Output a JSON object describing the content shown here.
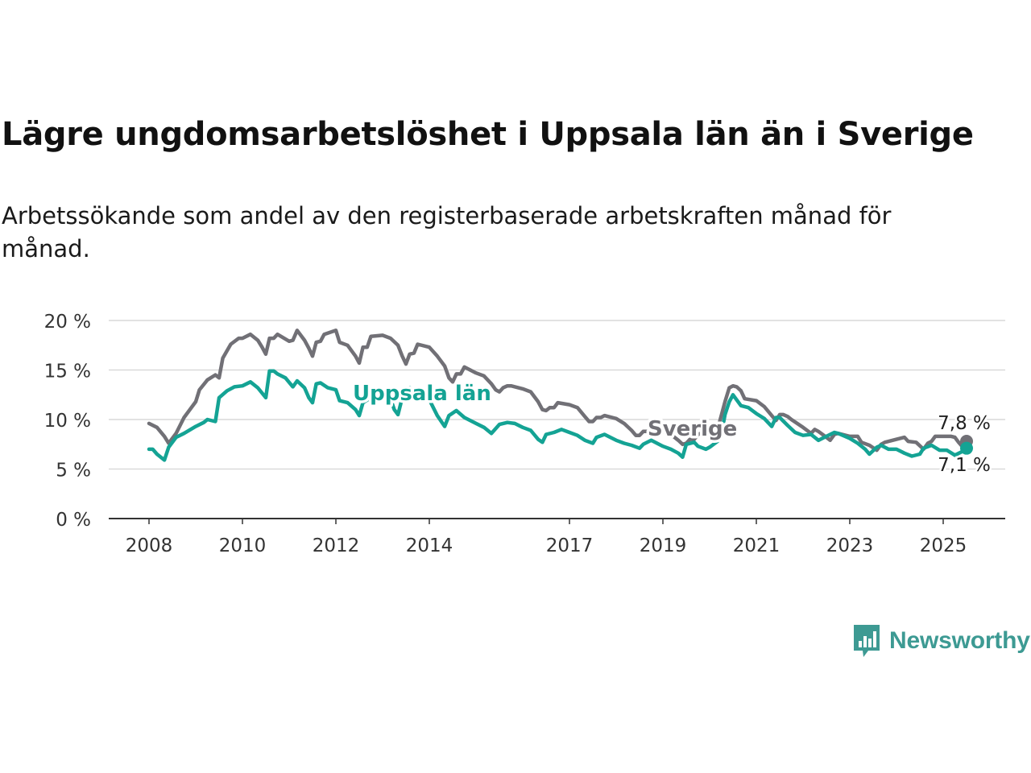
{
  "title": "Lägre ungdomsarbetslöshet i Uppsala län än i Sverige",
  "subtitle": "Arbetssökande som andel av den registerbaserade arbetskraften månad för månad.",
  "brand": {
    "name": "Newsworthy",
    "color": "#3d9a93"
  },
  "chart_data": {
    "type": "line",
    "title": "Lägre ungdomsarbetslöshet i Uppsala län än i Sverige",
    "ylim": [
      0,
      20
    ],
    "y_ticks": [
      "0 %",
      "5 %",
      "10 %",
      "15 %",
      "20 %"
    ],
    "y_tick_values": [
      0,
      5,
      10,
      15,
      20
    ],
    "x_ticks": [
      "2008",
      "2010",
      "2012",
      "2014",
      "2017",
      "2019",
      "2021",
      "2023",
      "2025"
    ],
    "x_tick_values": [
      2008,
      2010,
      2012,
      2014,
      2017,
      2019,
      2021,
      2023,
      2025
    ],
    "grid": true,
    "series": [
      {
        "name": "Sverige",
        "color": "#717076",
        "end_label": "7,8 %",
        "points": [
          [
            2008.0,
            9.6
          ],
          [
            2008.17,
            9.2
          ],
          [
            2008.33,
            8.3
          ],
          [
            2008.42,
            7.6
          ],
          [
            2008.58,
            8.6
          ],
          [
            2008.75,
            10.2
          ],
          [
            2009.0,
            11.8
          ],
          [
            2009.08,
            13.0
          ],
          [
            2009.25,
            14.0
          ],
          [
            2009.42,
            14.5
          ],
          [
            2009.5,
            14.2
          ],
          [
            2009.58,
            16.2
          ],
          [
            2009.75,
            17.6
          ],
          [
            2009.92,
            18.2
          ],
          [
            2010.0,
            18.2
          ],
          [
            2010.17,
            18.6
          ],
          [
            2010.33,
            18.0
          ],
          [
            2010.42,
            17.3
          ],
          [
            2010.5,
            16.6
          ],
          [
            2010.58,
            18.2
          ],
          [
            2010.67,
            18.2
          ],
          [
            2010.75,
            18.6
          ],
          [
            2011.0,
            17.9
          ],
          [
            2011.08,
            18.0
          ],
          [
            2011.17,
            19.0
          ],
          [
            2011.33,
            18.0
          ],
          [
            2011.42,
            17.2
          ],
          [
            2011.5,
            16.4
          ],
          [
            2011.58,
            17.8
          ],
          [
            2011.67,
            17.9
          ],
          [
            2011.75,
            18.6
          ],
          [
            2012.0,
            19.0
          ],
          [
            2012.08,
            17.8
          ],
          [
            2012.25,
            17.5
          ],
          [
            2012.42,
            16.4
          ],
          [
            2012.5,
            15.7
          ],
          [
            2012.58,
            17.3
          ],
          [
            2012.67,
            17.3
          ],
          [
            2012.75,
            18.4
          ],
          [
            2013.0,
            18.5
          ],
          [
            2013.17,
            18.2
          ],
          [
            2013.33,
            17.5
          ],
          [
            2013.42,
            16.4
          ],
          [
            2013.5,
            15.6
          ],
          [
            2013.58,
            16.6
          ],
          [
            2013.67,
            16.7
          ],
          [
            2013.75,
            17.6
          ],
          [
            2014.0,
            17.3
          ],
          [
            2014.17,
            16.4
          ],
          [
            2014.33,
            15.4
          ],
          [
            2014.42,
            14.2
          ],
          [
            2014.5,
            13.8
          ],
          [
            2014.58,
            14.6
          ],
          [
            2014.67,
            14.6
          ],
          [
            2014.75,
            15.3
          ],
          [
            2015.0,
            14.7
          ],
          [
            2015.17,
            14.4
          ],
          [
            2015.33,
            13.6
          ],
          [
            2015.42,
            13.0
          ],
          [
            2015.5,
            12.8
          ],
          [
            2015.58,
            13.2
          ],
          [
            2015.67,
            13.4
          ],
          [
            2015.75,
            13.4
          ],
          [
            2016.0,
            13.1
          ],
          [
            2016.17,
            12.8
          ],
          [
            2016.33,
            11.8
          ],
          [
            2016.42,
            11.0
          ],
          [
            2016.5,
            10.9
          ],
          [
            2016.58,
            11.2
          ],
          [
            2016.67,
            11.2
          ],
          [
            2016.75,
            11.7
          ],
          [
            2017.0,
            11.5
          ],
          [
            2017.17,
            11.2
          ],
          [
            2017.33,
            10.3
          ],
          [
            2017.42,
            9.8
          ],
          [
            2017.5,
            9.8
          ],
          [
            2017.58,
            10.2
          ],
          [
            2017.67,
            10.2
          ],
          [
            2017.75,
            10.4
          ],
          [
            2018.0,
            10.1
          ],
          [
            2018.17,
            9.6
          ],
          [
            2018.33,
            8.9
          ],
          [
            2018.42,
            8.4
          ],
          [
            2018.5,
            8.4
          ],
          [
            2018.58,
            8.8
          ],
          [
            2018.67,
            8.8
          ],
          [
            2018.75,
            9.0
          ],
          [
            2019.0,
            8.8
          ],
          [
            2019.17,
            8.5
          ],
          [
            2019.33,
            7.9
          ],
          [
            2019.42,
            7.5
          ],
          [
            2019.5,
            7.6
          ],
          [
            2019.58,
            8.0
          ],
          [
            2019.67,
            8.0
          ],
          [
            2019.75,
            8.5
          ],
          [
            2020.0,
            8.9
          ],
          [
            2020.17,
            9.0
          ],
          [
            2020.25,
            10.4
          ],
          [
            2020.33,
            11.8
          ],
          [
            2020.42,
            13.2
          ],
          [
            2020.5,
            13.4
          ],
          [
            2020.58,
            13.3
          ],
          [
            2020.67,
            12.9
          ],
          [
            2020.75,
            12.1
          ],
          [
            2021.0,
            11.9
          ],
          [
            2021.17,
            11.3
          ],
          [
            2021.33,
            10.4
          ],
          [
            2021.42,
            9.9
          ],
          [
            2021.5,
            10.5
          ],
          [
            2021.58,
            10.5
          ],
          [
            2021.67,
            10.3
          ],
          [
            2021.75,
            10.0
          ],
          [
            2022.0,
            9.2
          ],
          [
            2022.17,
            8.6
          ],
          [
            2022.25,
            9.0
          ],
          [
            2022.33,
            8.8
          ],
          [
            2022.5,
            8.2
          ],
          [
            2022.58,
            7.9
          ],
          [
            2022.67,
            8.5
          ],
          [
            2022.75,
            8.6
          ],
          [
            2023.0,
            8.3
          ],
          [
            2023.17,
            8.3
          ],
          [
            2023.25,
            7.7
          ],
          [
            2023.42,
            7.4
          ],
          [
            2023.58,
            6.9
          ],
          [
            2023.67,
            7.5
          ],
          [
            2023.75,
            7.7
          ],
          [
            2024.0,
            8.0
          ],
          [
            2024.17,
            8.2
          ],
          [
            2024.25,
            7.8
          ],
          [
            2024.42,
            7.7
          ],
          [
            2024.58,
            7.0
          ],
          [
            2024.67,
            7.6
          ],
          [
            2024.75,
            7.8
          ],
          [
            2024.83,
            8.3
          ],
          [
            2025.0,
            8.3
          ],
          [
            2025.17,
            8.3
          ],
          [
            2025.25,
            8.2
          ],
          [
            2025.33,
            7.7
          ],
          [
            2025.42,
            7.2
          ],
          [
            2025.5,
            7.8
          ]
        ]
      },
      {
        "name": "Uppsala län",
        "color": "#14a394",
        "end_label": "7,1 %",
        "points": [
          [
            2008.0,
            7.0
          ],
          [
            2008.08,
            7.0
          ],
          [
            2008.17,
            6.5
          ],
          [
            2008.33,
            5.9
          ],
          [
            2008.42,
            7.2
          ],
          [
            2008.58,
            8.2
          ],
          [
            2008.75,
            8.6
          ],
          [
            2009.0,
            9.3
          ],
          [
            2009.17,
            9.7
          ],
          [
            2009.25,
            10.0
          ],
          [
            2009.42,
            9.8
          ],
          [
            2009.5,
            12.2
          ],
          [
            2009.67,
            12.9
          ],
          [
            2009.83,
            13.3
          ],
          [
            2010.0,
            13.4
          ],
          [
            2010.17,
            13.8
          ],
          [
            2010.33,
            13.2
          ],
          [
            2010.5,
            12.2
          ],
          [
            2010.58,
            14.9
          ],
          [
            2010.67,
            14.9
          ],
          [
            2010.75,
            14.6
          ],
          [
            2010.92,
            14.2
          ],
          [
            2011.08,
            13.3
          ],
          [
            2011.17,
            13.9
          ],
          [
            2011.33,
            13.2
          ],
          [
            2011.42,
            12.2
          ],
          [
            2011.5,
            11.7
          ],
          [
            2011.58,
            13.6
          ],
          [
            2011.67,
            13.7
          ],
          [
            2011.83,
            13.2
          ],
          [
            2012.0,
            13.0
          ],
          [
            2012.08,
            11.9
          ],
          [
            2012.25,
            11.7
          ],
          [
            2012.42,
            11.0
          ],
          [
            2012.5,
            10.4
          ],
          [
            2012.58,
            11.7
          ],
          [
            2012.75,
            12.2
          ],
          [
            2013.0,
            12.6
          ],
          [
            2013.17,
            12.1
          ],
          [
            2013.25,
            11.0
          ],
          [
            2013.33,
            10.5
          ],
          [
            2013.42,
            12.2
          ],
          [
            2013.58,
            13.2
          ],
          [
            2013.75,
            12.5
          ],
          [
            2014.0,
            12.0
          ],
          [
            2014.17,
            10.4
          ],
          [
            2014.33,
            9.3
          ],
          [
            2014.42,
            10.4
          ],
          [
            2014.58,
            10.9
          ],
          [
            2014.75,
            10.2
          ],
          [
            2015.0,
            9.6
          ],
          [
            2015.17,
            9.2
          ],
          [
            2015.33,
            8.6
          ],
          [
            2015.5,
            9.5
          ],
          [
            2015.67,
            9.7
          ],
          [
            2015.83,
            9.6
          ],
          [
            2016.0,
            9.2
          ],
          [
            2016.17,
            8.9
          ],
          [
            2016.33,
            8.0
          ],
          [
            2016.42,
            7.7
          ],
          [
            2016.5,
            8.5
          ],
          [
            2016.67,
            8.7
          ],
          [
            2016.83,
            9.0
          ],
          [
            2017.0,
            8.7
          ],
          [
            2017.17,
            8.4
          ],
          [
            2017.33,
            7.9
          ],
          [
            2017.5,
            7.6
          ],
          [
            2017.58,
            8.2
          ],
          [
            2017.75,
            8.5
          ],
          [
            2018.0,
            7.9
          ],
          [
            2018.17,
            7.6
          ],
          [
            2018.33,
            7.4
          ],
          [
            2018.5,
            7.1
          ],
          [
            2018.58,
            7.5
          ],
          [
            2018.75,
            7.9
          ],
          [
            2019.0,
            7.3
          ],
          [
            2019.17,
            7.0
          ],
          [
            2019.33,
            6.6
          ],
          [
            2019.42,
            6.2
          ],
          [
            2019.5,
            7.5
          ],
          [
            2019.67,
            7.7
          ],
          [
            2019.75,
            7.3
          ],
          [
            2019.92,
            7.0
          ],
          [
            2020.0,
            7.2
          ],
          [
            2020.17,
            7.8
          ],
          [
            2020.25,
            8.5
          ],
          [
            2020.33,
            10.5
          ],
          [
            2020.42,
            11.8
          ],
          [
            2020.5,
            12.5
          ],
          [
            2020.67,
            11.4
          ],
          [
            2020.83,
            11.2
          ],
          [
            2021.0,
            10.6
          ],
          [
            2021.17,
            10.1
          ],
          [
            2021.33,
            9.3
          ],
          [
            2021.42,
            10.2
          ],
          [
            2021.5,
            10.2
          ],
          [
            2021.67,
            9.4
          ],
          [
            2021.83,
            8.7
          ],
          [
            2022.0,
            8.4
          ],
          [
            2022.17,
            8.5
          ],
          [
            2022.33,
            7.9
          ],
          [
            2022.5,
            8.3
          ],
          [
            2022.67,
            8.7
          ],
          [
            2022.75,
            8.6
          ],
          [
            2023.0,
            8.1
          ],
          [
            2023.17,
            7.6
          ],
          [
            2023.33,
            7.0
          ],
          [
            2023.42,
            6.5
          ],
          [
            2023.58,
            7.2
          ],
          [
            2023.67,
            7.4
          ],
          [
            2023.83,
            7.0
          ],
          [
            2024.0,
            7.0
          ],
          [
            2024.17,
            6.6
          ],
          [
            2024.33,
            6.3
          ],
          [
            2024.5,
            6.5
          ],
          [
            2024.58,
            7.1
          ],
          [
            2024.75,
            7.4
          ],
          [
            2024.92,
            6.9
          ],
          [
            2025.08,
            6.9
          ],
          [
            2025.25,
            6.4
          ],
          [
            2025.42,
            6.8
          ],
          [
            2025.5,
            7.1
          ]
        ]
      }
    ]
  }
}
